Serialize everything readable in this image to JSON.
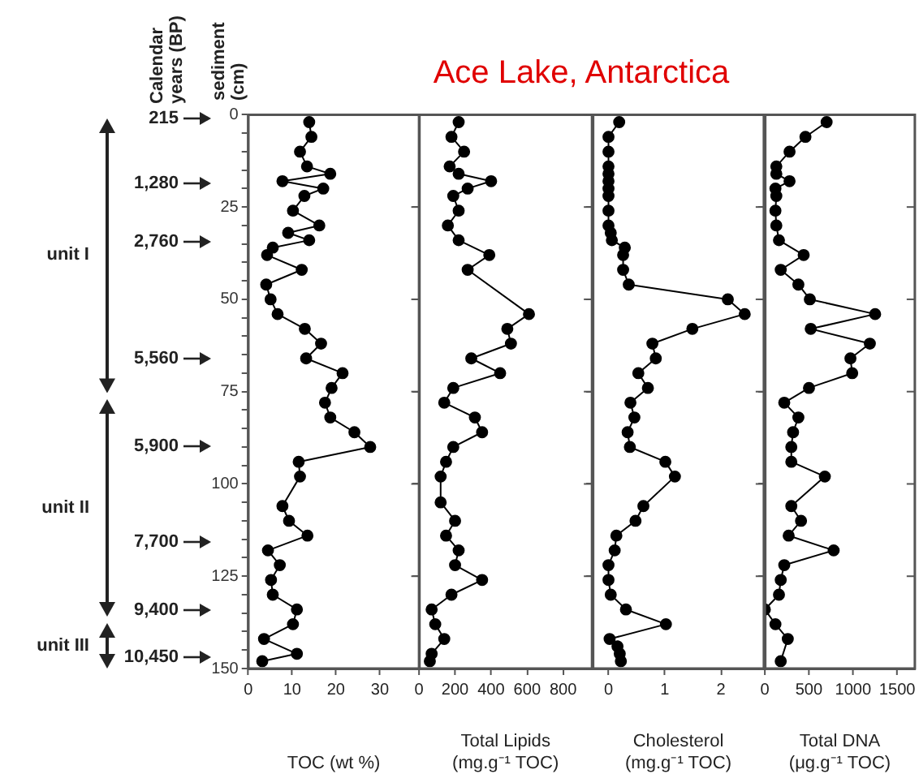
{
  "chart_data": [
    {
      "type": "line",
      "xlabel": "TOC (wt %)",
      "ylabel": "sediment (cm)",
      "orientation": "horizontal",
      "marker": "circle",
      "line_style": "solid",
      "legend": false,
      "grid": false,
      "xlim": [
        0,
        39
      ],
      "xticks": [
        0,
        10,
        20,
        30
      ],
      "ylim": [
        150,
        0
      ],
      "yticks": [
        0,
        {
          "value": 5,
          "label": null
        },
        {
          "value": 10,
          "label": null
        },
        {
          "value": 15,
          "label": null
        },
        {
          "value": 20,
          "label": null
        },
        25,
        {
          "value": 30,
          "label": null
        },
        {
          "value": 35,
          "label": null
        },
        {
          "value": 40,
          "label": null
        },
        {
          "value": 45,
          "label": null
        },
        50,
        {
          "value": 55,
          "label": null
        },
        {
          "value": 60,
          "label": null
        },
        {
          "value": 65,
          "label": null
        },
        {
          "value": 70,
          "label": null
        },
        75,
        {
          "value": 80,
          "label": null
        },
        {
          "value": 85,
          "label": null
        },
        {
          "value": 90,
          "label": null
        },
        {
          "value": 95,
          "label": null
        },
        100,
        {
          "value": 105,
          "label": null
        },
        {
          "value": 110,
          "label": null
        },
        {
          "value": 115,
          "label": null
        },
        {
          "value": 120,
          "label": null
        },
        125,
        {
          "value": 130,
          "label": null
        },
        {
          "value": 135,
          "label": null
        },
        {
          "value": 140,
          "label": null
        },
        {
          "value": 145,
          "label": null
        },
        150
      ],
      "annotations": [
        "Calendar years (BP)",
        "215",
        "1,280",
        "2,760",
        "5,560",
        "5,900",
        "7,700",
        "9,400",
        "10,450",
        "unit I",
        "unit II",
        "unit III"
      ],
      "series": [
        {
          "color": "#000000",
          "x": [
            2,
            6,
            10,
            14,
            16,
            18,
            20,
            22,
            26,
            30,
            32,
            34,
            36,
            38,
            42,
            46,
            50,
            54,
            58,
            62,
            66,
            70,
            74,
            78,
            82,
            86,
            90,
            94,
            98,
            106,
            110,
            114,
            118,
            122,
            126,
            130,
            134,
            138,
            142,
            146,
            148
          ],
          "values": [
            13.9,
            14.4,
            11.8,
            13.4,
            18.7,
            7.8,
            17.1,
            12.8,
            10.2,
            16.2,
            9.1,
            13.9,
            5.6,
            4.3,
            12.2,
            4.1,
            5.1,
            6.7,
            12.9,
            16.6,
            13.2,
            21.5,
            19.0,
            17.5,
            18.7,
            24.2,
            27.8,
            11.5,
            11.8,
            7.8,
            9.3,
            13.5,
            4.5,
            7.2,
            5.2,
            5.6,
            11.1,
            10.2,
            3.6,
            11.1,
            3.2
          ]
        }
      ]
    },
    {
      "type": "line",
      "title": "Ace Lake, Antarctica",
      "xlabel": "Total Lipids (mg.g⁻¹ TOC)",
      "orientation": "horizontal",
      "marker": "circle",
      "line_style": "solid",
      "legend": false,
      "grid": false,
      "tick_labels": "x",
      "xlim": [
        0,
        960
      ],
      "xticks": [
        0,
        200,
        400,
        600,
        800
      ],
      "ylim": [
        150,
        0
      ],
      "yticks": [
        0,
        25,
        50,
        75,
        100,
        125,
        150
      ],
      "series": [
        {
          "color": "#000000",
          "x": [
            2,
            6,
            10,
            14,
            16,
            18,
            20,
            22,
            26,
            30,
            34,
            38,
            42,
            54,
            58,
            62,
            66,
            70,
            74,
            78,
            82,
            86,
            90,
            94,
            98,
            105,
            110,
            114,
            118,
            122,
            126,
            130,
            134,
            138,
            142,
            146,
            148
          ],
          "values": [
            220,
            180,
            250,
            170,
            220,
            400,
            270,
            190,
            220,
            160,
            220,
            390,
            270,
            610,
            490,
            510,
            290,
            450,
            190,
            140,
            310,
            350,
            190,
            150,
            120,
            120,
            200,
            150,
            220,
            200,
            350,
            180,
            70,
            90,
            140,
            70,
            60
          ]
        }
      ]
    },
    {
      "type": "line",
      "xlabel": "Cholesterol (mg.g⁻¹ TOC)",
      "orientation": "horizontal",
      "marker": "circle",
      "line_style": "solid",
      "legend": false,
      "grid": false,
      "tick_labels": "x",
      "xlim": [
        -0.28,
        2.76
      ],
      "xticks": [
        0,
        1,
        2
      ],
      "ylim": [
        150,
        0
      ],
      "yticks": [
        0,
        25,
        50,
        75,
        100,
        125,
        150
      ],
      "series": [
        {
          "color": "#000000",
          "x": [
            2,
            6,
            10,
            14,
            16,
            18,
            20,
            22,
            26,
            30,
            32,
            34,
            36,
            38,
            42,
            46,
            50,
            54,
            58,
            62,
            66,
            70,
            74,
            78,
            82,
            86,
            90,
            94,
            98,
            106,
            110,
            114,
            118,
            122,
            126,
            130,
            134,
            138,
            142,
            144,
            146,
            148
          ],
          "values": [
            0.19,
            0,
            0,
            0,
            0,
            0,
            0,
            0,
            0,
            0,
            0.04,
            0.06,
            0.29,
            0.26,
            0.26,
            0.36,
            2.12,
            2.42,
            1.49,
            0.78,
            0.84,
            0.53,
            0.7,
            0.39,
            0.46,
            0.34,
            0.38,
            1.01,
            1.18,
            0.62,
            0.48,
            0.14,
            0.11,
            0,
            0,
            0.04,
            0.31,
            1.02,
            0.02,
            0.16,
            0.2,
            0.22
          ]
        }
      ]
    },
    {
      "type": "line",
      "xlabel": "Total DNA (μg.g⁻¹ TOC)",
      "orientation": "horizontal",
      "marker": "circle",
      "line_style": "solid",
      "legend": false,
      "grid": false,
      "tick_labels": "x",
      "xlim": [
        0,
        1700
      ],
      "xticks": [
        0,
        500,
        1000,
        1500
      ],
      "ylim": [
        150,
        0
      ],
      "yticks": [
        0,
        25,
        50,
        75,
        100,
        125,
        150
      ],
      "series": [
        {
          "color": "#000000",
          "x": [
            2,
            6,
            10,
            14,
            16,
            18,
            20,
            22,
            26,
            30,
            34,
            38,
            42,
            46,
            50,
            54,
            58,
            62,
            66,
            70,
            74,
            78,
            82,
            86,
            90,
            94,
            98,
            106,
            110,
            114,
            118,
            122,
            126,
            130,
            134,
            138,
            142,
            148
          ],
          "values": [
            700,
            460,
            280,
            130,
            130,
            280,
            120,
            130,
            120,
            130,
            160,
            440,
            180,
            380,
            510,
            1250,
            520,
            1190,
            970,
            990,
            500,
            220,
            380,
            320,
            300,
            300,
            680,
            300,
            410,
            270,
            780,
            220,
            180,
            160,
            0,
            120,
            260,
            180
          ]
        }
      ]
    }
  ]
}
